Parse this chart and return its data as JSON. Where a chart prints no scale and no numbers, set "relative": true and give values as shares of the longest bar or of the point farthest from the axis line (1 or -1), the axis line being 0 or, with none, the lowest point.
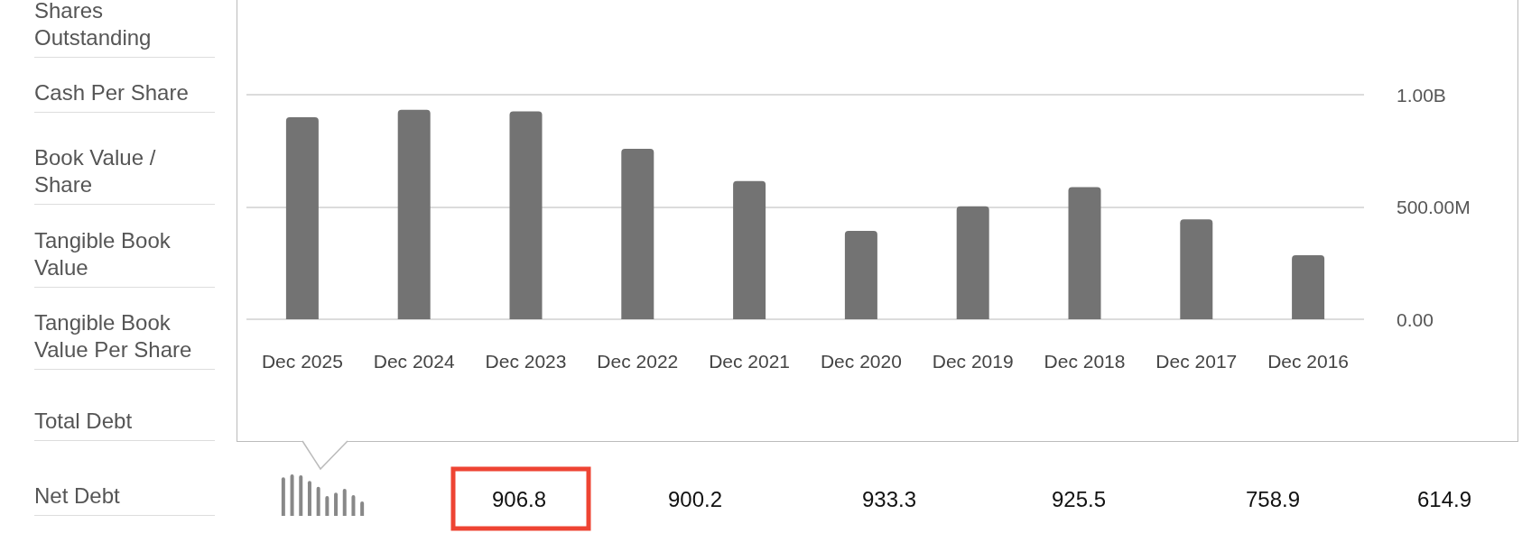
{
  "chart_data": [
    {
      "type": "bar",
      "categories": [
        "Dec 2025",
        "Dec 2024",
        "Dec 2023",
        "Dec 2022",
        "Dec 2021",
        "Dec 2020",
        "Dec 2019",
        "Dec 2018",
        "Dec 2017",
        "Dec 2016"
      ],
      "values": [
        900000000,
        933000000,
        926000000,
        759000000,
        615000000,
        394000000,
        503000000,
        588000000,
        445000000,
        285000000
      ],
      "color": "#737373",
      "ylim": [
        0,
        1000000000
      ],
      "yticks": [
        {
          "value": 0,
          "label": "0.00"
        },
        {
          "value": 500000000,
          "label": "500.00M"
        },
        {
          "value": 1000000000,
          "label": "1.00B"
        }
      ],
      "grid": "y"
    },
    {
      "type": "other",
      "categories": [
        "Shares Outstanding",
        "Cash Per Share",
        "Book Value / Share",
        "Tangible Book Value",
        "Tangible Book Value Per Share",
        "Total Debt",
        "Net Debt"
      ],
      "annotations": [
        "906.8",
        "900.2",
        "933.3",
        "925.5",
        "758.9",
        "614.9"
      ]
    },
    {
      "type": "bar",
      "relative": true,
      "tick_labels": false,
      "color": "#888888",
      "categories": [
        null,
        null,
        null,
        null,
        null,
        null,
        null,
        null,
        null,
        null
      ],
      "values": [
        0.93,
        1,
        0.98,
        0.84,
        0.7,
        0.48,
        0.56,
        0.65,
        0.5,
        0.35
      ]
    }
  ]
}
